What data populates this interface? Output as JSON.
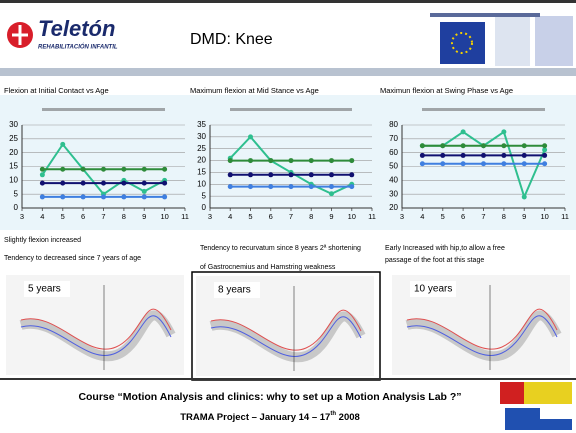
{
  "header": {
    "logo": "Teletón",
    "logo_sub": "REHABILITACIÓN INFANTIL",
    "title": "DMD: Knee"
  },
  "chart_data": [
    {
      "type": "line",
      "title": "Flexion  at Initial Contact vs Age",
      "x": [
        4,
        5,
        6,
        7,
        8,
        9,
        10
      ],
      "xlim": [
        3,
        11
      ],
      "xticks": [
        3,
        4,
        5,
        6,
        7,
        8,
        9,
        10,
        11
      ],
      "ylim": [
        0,
        30
      ],
      "yticks": [
        0,
        5,
        10,
        15,
        20,
        25,
        30
      ],
      "grid": true,
      "series": [
        {
          "color": "#2fbf8f",
          "values": [
            12,
            23,
            14,
            5,
            10,
            6,
            10
          ]
        },
        {
          "color": "#2e8b3a",
          "values": [
            14,
            14,
            14,
            14,
            14,
            14,
            14
          ]
        },
        {
          "color": "#101070",
          "values": [
            9,
            9,
            9,
            9,
            9,
            9,
            9
          ]
        },
        {
          "color": "#3f7fe0",
          "values": [
            4,
            4,
            4,
            4,
            4,
            4,
            4
          ]
        }
      ]
    },
    {
      "type": "line",
      "title": "Maximum flexion at  Mid Stance vs Age",
      "x": [
        4,
        5,
        6,
        7,
        8,
        9,
        10
      ],
      "xlim": [
        3,
        11
      ],
      "xticks": [
        3,
        4,
        5,
        6,
        7,
        8,
        9,
        10,
        11
      ],
      "ylim": [
        0,
        35
      ],
      "yticks": [
        0,
        5,
        10,
        15,
        20,
        25,
        30,
        35
      ],
      "grid": true,
      "series": [
        {
          "color": "#2fbf8f",
          "values": [
            21,
            30,
            20,
            15,
            10,
            6,
            10
          ]
        },
        {
          "color": "#2e8b3a",
          "values": [
            20,
            20,
            20,
            20,
            20,
            20,
            20
          ]
        },
        {
          "color": "#101070",
          "values": [
            14,
            14,
            14,
            14,
            14,
            14,
            14
          ]
        },
        {
          "color": "#3f7fe0",
          "values": [
            9,
            9,
            9,
            9,
            9,
            9,
            9
          ]
        }
      ]
    },
    {
      "type": "line",
      "title": "Maximun flexion at Swing Phase vs Age",
      "x": [
        4,
        5,
        6,
        7,
        8,
        9,
        10
      ],
      "xlim": [
        3,
        11
      ],
      "xticks": [
        3,
        4,
        5,
        6,
        7,
        8,
        9,
        10,
        11
      ],
      "ylim": [
        20,
        80
      ],
      "yticks": [
        20,
        30,
        40,
        50,
        60,
        70,
        80
      ],
      "grid": true,
      "series": [
        {
          "color": "#2fbf8f",
          "values": [
            65,
            65,
            75,
            65,
            75,
            28,
            62
          ]
        },
        {
          "color": "#2e8b3a",
          "values": [
            65,
            65,
            65,
            65,
            65,
            65,
            65
          ]
        },
        {
          "color": "#101070",
          "values": [
            58,
            58,
            58,
            58,
            58,
            58,
            58
          ]
        },
        {
          "color": "#3f7fe0",
          "values": [
            52,
            52,
            52,
            52,
            52,
            52,
            52
          ]
        }
      ]
    }
  ],
  "notes": [
    "Slightly  flexion increased",
    "Tendency to decreased since   7 years of age",
    "Tendency to recurvatum since 8 years 2ª shortening",
    "of Gastrocnemius  and  Hamstring weakness",
    "Early Increased  with hip,to allow a free",
    "passage of the foot at this stage"
  ],
  "images": [
    "5 years",
    "8 years",
    "10 years"
  ],
  "footer": {
    "line1": "Course “Motion Analysis and clinics: why to set up a Motion Analysis Lab ?”",
    "line2a": "TRAMA Project  –  January 14  – 17",
    "line2b": "th",
    "line2c": " 2008"
  }
}
